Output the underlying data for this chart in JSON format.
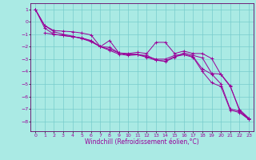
{
  "xlabel": "Windchill (Refroidissement éolien,°C)",
  "bg_color": "#aaeae4",
  "grid_color": "#77cccc",
  "line_color": "#990099",
  "spine_color": "#660066",
  "xlim": [
    -0.5,
    23.5
  ],
  "ylim": [
    -8.8,
    1.5
  ],
  "yticks": [
    1,
    0,
    -1,
    -2,
    -3,
    -4,
    -5,
    -6,
    -7,
    -8
  ],
  "xticks": [
    0,
    1,
    2,
    3,
    4,
    5,
    6,
    7,
    8,
    9,
    10,
    11,
    12,
    13,
    14,
    15,
    16,
    17,
    18,
    19,
    20,
    21,
    22,
    23
  ],
  "line1_x": [
    0,
    1,
    2,
    3,
    4,
    5,
    6,
    7,
    8,
    9,
    10,
    11,
    12,
    13,
    14,
    15,
    16,
    17,
    18,
    19,
    20,
    21,
    22,
    23
  ],
  "line1_y": [
    1.0,
    -0.3,
    -0.7,
    -0.75,
    -0.8,
    -0.9,
    -1.05,
    -2.0,
    -1.5,
    -2.5,
    -2.55,
    -2.45,
    -2.55,
    -1.65,
    -1.65,
    -2.55,
    -2.35,
    -2.55,
    -2.55,
    -2.95,
    -4.25,
    -5.2,
    -7.05,
    -7.75
  ],
  "line2_x": [
    1,
    2,
    3,
    4,
    5,
    6,
    7,
    8,
    9,
    10,
    11,
    12,
    13,
    14,
    15,
    16,
    17,
    18,
    19,
    20,
    21,
    22,
    23
  ],
  "line2_y": [
    -0.9,
    -1.0,
    -1.1,
    -1.2,
    -1.3,
    -1.55,
    -2.0,
    -2.05,
    -2.5,
    -2.65,
    -2.65,
    -2.7,
    -3.05,
    -3.2,
    -2.85,
    -2.5,
    -2.7,
    -2.9,
    -4.15,
    -4.2,
    -5.15,
    -7.15,
    -7.8
  ],
  "line3_x": [
    0,
    1,
    2,
    3,
    4,
    5,
    6,
    7,
    8,
    9,
    10,
    11,
    12,
    13,
    14,
    15,
    16,
    17,
    18,
    19,
    20,
    21,
    22,
    23
  ],
  "line3_y": [
    1.0,
    -0.5,
    -1.0,
    -1.1,
    -1.2,
    -1.3,
    -1.5,
    -2.0,
    -2.2,
    -2.5,
    -2.6,
    -2.6,
    -2.8,
    -3.0,
    -3.0,
    -2.7,
    -2.6,
    -2.8,
    -3.8,
    -4.2,
    -5.0,
    -7.0,
    -7.2,
    -7.85
  ],
  "line4_x": [
    0,
    1,
    2,
    3,
    4,
    5,
    6,
    7,
    8,
    9,
    10,
    11,
    12,
    13,
    14,
    15,
    16,
    17,
    18,
    19,
    20,
    21,
    22,
    23
  ],
  "line4_y": [
    1.0,
    -0.3,
    -0.8,
    -1.0,
    -1.15,
    -1.35,
    -1.6,
    -2.0,
    -2.3,
    -2.6,
    -2.7,
    -2.65,
    -2.85,
    -3.1,
    -3.15,
    -2.8,
    -2.65,
    -2.85,
    -4.0,
    -4.9,
    -5.2,
    -7.1,
    -7.3,
    -7.85
  ],
  "marker": "+",
  "marker_size": 3.0,
  "linewidth": 0.7,
  "tick_fontsize": 4.5,
  "label_fontsize": 5.5
}
